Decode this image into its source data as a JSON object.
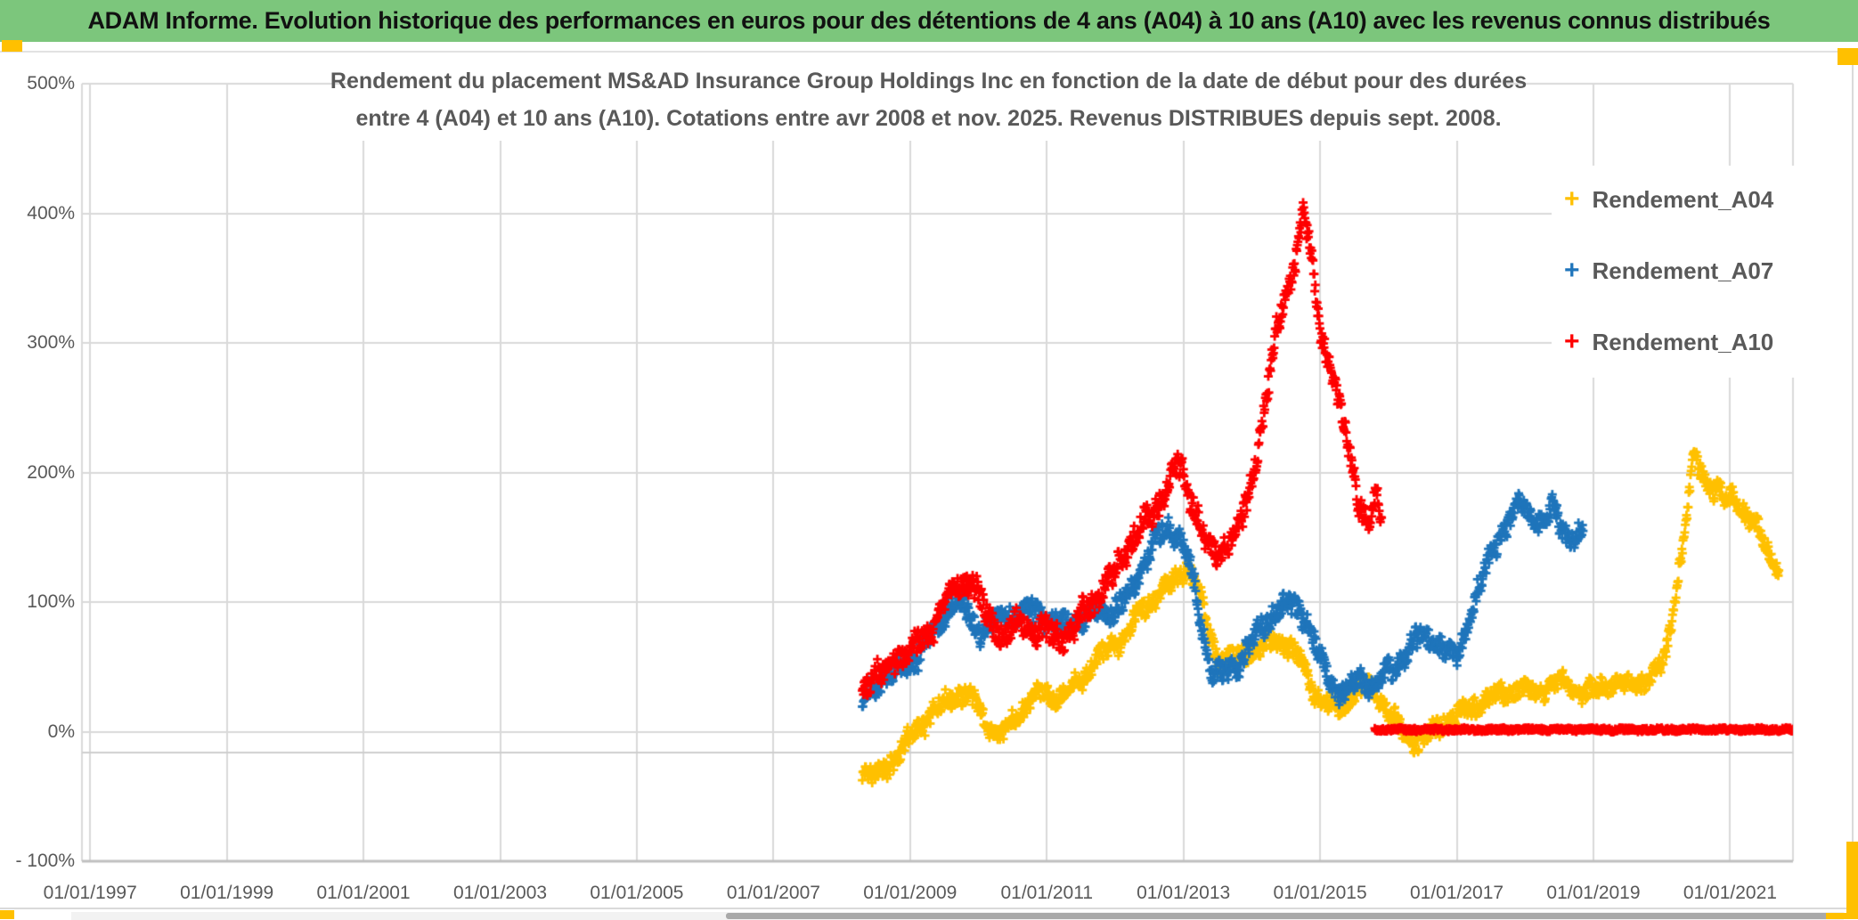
{
  "header": {
    "title": "ADAM Informe. Evolution historique des performances en euros pour des détentions de 4 ans (A04) à 10 ans (A10) avec les revenus connus distribués",
    "bg_color": "#7cc67c",
    "accent_color": "#ffc000"
  },
  "chart_data": {
    "type": "scatter",
    "title_lines": [
      "Rendement du placement MS&AD Insurance Group Holdings Inc en fonction de la date de début pour des durées",
      "entre 4 (A04) et 10 ans (A10). Cotations entre avr 2008 et nov. 2025. Revenus DISTRIBUES depuis sept. 2008."
    ],
    "xlabel": "",
    "ylabel": "",
    "x_range": [
      1996.88,
      2021.92
    ],
    "y_range": [
      -100,
      500
    ],
    "grid": true,
    "legend_position": "right",
    "grid_color": "#d9d9d9",
    "axis_line_color": "#bfbfbf",
    "text_color": "#595959",
    "y_ticks": [
      {
        "label": "500%",
        "value": 500
      },
      {
        "label": "400%",
        "value": 400
      },
      {
        "label": "300%",
        "value": 300
      },
      {
        "label": "200%",
        "value": 200
      },
      {
        "label": "100%",
        "value": 100
      },
      {
        "label": "0%",
        "value": 0
      },
      {
        "label": "- 100%",
        "value": -100
      }
    ],
    "x_ticks": [
      {
        "label": "01/01/1997",
        "year": 1997
      },
      {
        "label": "01/01/1999",
        "year": 1999
      },
      {
        "label": "01/01/2001",
        "year": 2001
      },
      {
        "label": "01/01/2003",
        "year": 2003
      },
      {
        "label": "01/01/2005",
        "year": 2005
      },
      {
        "label": "01/01/2007",
        "year": 2007
      },
      {
        "label": "01/01/2009",
        "year": 2009
      },
      {
        "label": "01/01/2011",
        "year": 2011
      },
      {
        "label": "01/01/2013",
        "year": 2013
      },
      {
        "label": "01/01/2015",
        "year": 2015
      },
      {
        "label": "01/01/2017",
        "year": 2017
      },
      {
        "label": "01/01/2019",
        "year": 2019
      },
      {
        "label": "01/01/2021",
        "year": 2021
      }
    ],
    "series": [
      {
        "name": "Rendement_A04",
        "color": "#ffc000",
        "marker": "plus",
        "anchors": [
          [
            2008.3,
            -28
          ],
          [
            2008.45,
            -36
          ],
          [
            2008.6,
            -30
          ],
          [
            2008.75,
            -22
          ],
          [
            2008.9,
            -12
          ],
          [
            2009.05,
            -2
          ],
          [
            2009.2,
            8
          ],
          [
            2009.4,
            18
          ],
          [
            2009.6,
            26
          ],
          [
            2009.8,
            30
          ],
          [
            2009.95,
            22
          ],
          [
            2010.1,
            8
          ],
          [
            2010.3,
            -4
          ],
          [
            2010.5,
            8
          ],
          [
            2010.7,
            22
          ],
          [
            2010.9,
            30
          ],
          [
            2011.1,
            26
          ],
          [
            2011.3,
            30
          ],
          [
            2011.5,
            38
          ],
          [
            2011.7,
            55
          ],
          [
            2011.9,
            62
          ],
          [
            2012.1,
            72
          ],
          [
            2012.3,
            88
          ],
          [
            2012.5,
            100
          ],
          [
            2012.7,
            108
          ],
          [
            2012.9,
            118
          ],
          [
            2013.05,
            128
          ],
          [
            2013.2,
            112
          ],
          [
            2013.35,
            80
          ],
          [
            2013.5,
            58
          ],
          [
            2013.7,
            55
          ],
          [
            2013.9,
            60
          ],
          [
            2014.1,
            64
          ],
          [
            2014.3,
            68
          ],
          [
            2014.5,
            70
          ],
          [
            2014.7,
            55
          ],
          [
            2014.9,
            34
          ],
          [
            2015.1,
            20
          ],
          [
            2015.3,
            18
          ],
          [
            2015.5,
            30
          ],
          [
            2015.7,
            34
          ],
          [
            2015.9,
            24
          ],
          [
            2016.1,
            8
          ],
          [
            2016.3,
            -4
          ],
          [
            2016.5,
            -8
          ],
          [
            2016.7,
            2
          ],
          [
            2016.9,
            12
          ],
          [
            2017.1,
            16
          ],
          [
            2017.3,
            20
          ],
          [
            2017.5,
            26
          ],
          [
            2017.7,
            30
          ],
          [
            2017.9,
            34
          ],
          [
            2018.1,
            30
          ],
          [
            2018.3,
            34
          ],
          [
            2018.5,
            38
          ],
          [
            2018.7,
            34
          ],
          [
            2018.9,
            30
          ],
          [
            2019.1,
            34
          ],
          [
            2019.3,
            38
          ],
          [
            2019.5,
            34
          ],
          [
            2019.7,
            38
          ],
          [
            2019.9,
            44
          ],
          [
            2020.05,
            58
          ],
          [
            2020.2,
            105
          ],
          [
            2020.35,
            160
          ],
          [
            2020.48,
            215
          ],
          [
            2020.55,
            205
          ],
          [
            2020.65,
            192
          ],
          [
            2020.8,
            185
          ],
          [
            2020.95,
            178
          ],
          [
            2021.05,
            182
          ],
          [
            2021.15,
            172
          ],
          [
            2021.3,
            162
          ],
          [
            2021.45,
            152
          ],
          [
            2021.6,
            135
          ],
          [
            2021.72,
            125
          ]
        ]
      },
      {
        "name": "Rendement_A07",
        "color": "#1f75bb",
        "marker": "plus",
        "anchors": [
          [
            2008.3,
            22
          ],
          [
            2008.45,
            32
          ],
          [
            2008.6,
            45
          ],
          [
            2008.75,
            42
          ],
          [
            2008.9,
            48
          ],
          [
            2009.05,
            55
          ],
          [
            2009.2,
            65
          ],
          [
            2009.4,
            82
          ],
          [
            2009.55,
            95
          ],
          [
            2009.7,
            98
          ],
          [
            2009.85,
            90
          ],
          [
            2010.0,
            78
          ],
          [
            2010.2,
            82
          ],
          [
            2010.4,
            92
          ],
          [
            2010.6,
            90
          ],
          [
            2010.8,
            94
          ],
          [
            2011.0,
            88
          ],
          [
            2011.2,
            82
          ],
          [
            2011.4,
            85
          ],
          [
            2011.6,
            88
          ],
          [
            2011.8,
            95
          ],
          [
            2012.0,
            92
          ],
          [
            2012.2,
            105
          ],
          [
            2012.4,
            128
          ],
          [
            2012.6,
            148
          ],
          [
            2012.8,
            158
          ],
          [
            2012.95,
            150
          ],
          [
            2013.1,
            128
          ],
          [
            2013.25,
            85
          ],
          [
            2013.4,
            48
          ],
          [
            2013.55,
            42
          ],
          [
            2013.7,
            48
          ],
          [
            2013.85,
            55
          ],
          [
            2014.0,
            70
          ],
          [
            2014.2,
            85
          ],
          [
            2014.4,
            95
          ],
          [
            2014.6,
            98
          ],
          [
            2014.8,
            88
          ],
          [
            2015.0,
            55
          ],
          [
            2015.2,
            35
          ],
          [
            2015.4,
            30
          ],
          [
            2015.6,
            40
          ],
          [
            2015.8,
            36
          ],
          [
            2016.0,
            45
          ],
          [
            2016.2,
            56
          ],
          [
            2016.4,
            70
          ],
          [
            2016.6,
            74
          ],
          [
            2016.8,
            64
          ],
          [
            2017.0,
            56
          ],
          [
            2017.2,
            90
          ],
          [
            2017.4,
            122
          ],
          [
            2017.6,
            150
          ],
          [
            2017.8,
            165
          ],
          [
            2017.95,
            180
          ],
          [
            2018.1,
            168
          ],
          [
            2018.25,
            158
          ],
          [
            2018.4,
            172
          ],
          [
            2018.55,
            158
          ],
          [
            2018.7,
            148
          ],
          [
            2018.85,
            152
          ]
        ]
      },
      {
        "name": "Rendement_A10",
        "color": "#fe0000",
        "marker": "plus",
        "anchors": [
          [
            2008.3,
            32
          ],
          [
            2008.45,
            48
          ],
          [
            2008.6,
            42
          ],
          [
            2008.75,
            55
          ],
          [
            2008.9,
            60
          ],
          [
            2009.05,
            64
          ],
          [
            2009.2,
            72
          ],
          [
            2009.4,
            88
          ],
          [
            2009.6,
            105
          ],
          [
            2009.75,
            115
          ],
          [
            2009.9,
            118
          ],
          [
            2010.05,
            98
          ],
          [
            2010.2,
            82
          ],
          [
            2010.4,
            76
          ],
          [
            2010.6,
            85
          ],
          [
            2010.8,
            80
          ],
          [
            2011.0,
            76
          ],
          [
            2011.2,
            72
          ],
          [
            2011.4,
            80
          ],
          [
            2011.6,
            95
          ],
          [
            2011.8,
            108
          ],
          [
            2012.0,
            122
          ],
          [
            2012.2,
            145
          ],
          [
            2012.4,
            160
          ],
          [
            2012.6,
            172
          ],
          [
            2012.8,
            195
          ],
          [
            2012.92,
            205
          ],
          [
            2013.05,
            190
          ],
          [
            2013.2,
            168
          ],
          [
            2013.35,
            142
          ],
          [
            2013.5,
            136
          ],
          [
            2013.65,
            148
          ],
          [
            2013.8,
            158
          ],
          [
            2013.95,
            178
          ],
          [
            2014.1,
            225
          ],
          [
            2014.25,
            272
          ],
          [
            2014.4,
            318
          ],
          [
            2014.55,
            348
          ],
          [
            2014.65,
            372
          ],
          [
            2014.75,
            400
          ],
          [
            2014.85,
            372
          ],
          [
            2014.95,
            330
          ],
          [
            2015.05,
            300
          ],
          [
            2015.2,
            268
          ],
          [
            2015.35,
            235
          ],
          [
            2015.5,
            198
          ],
          [
            2015.62,
            168
          ],
          [
            2015.72,
            162
          ],
          [
            2015.82,
            185
          ],
          [
            2015.9,
            158
          ]
        ],
        "flat_segment": {
          "note": "dense flat run of markers at ~0% return",
          "anchors": [
            [
              2015.8,
              1.5
            ],
            [
              2021.93,
              1.5
            ]
          ]
        }
      }
    ]
  }
}
